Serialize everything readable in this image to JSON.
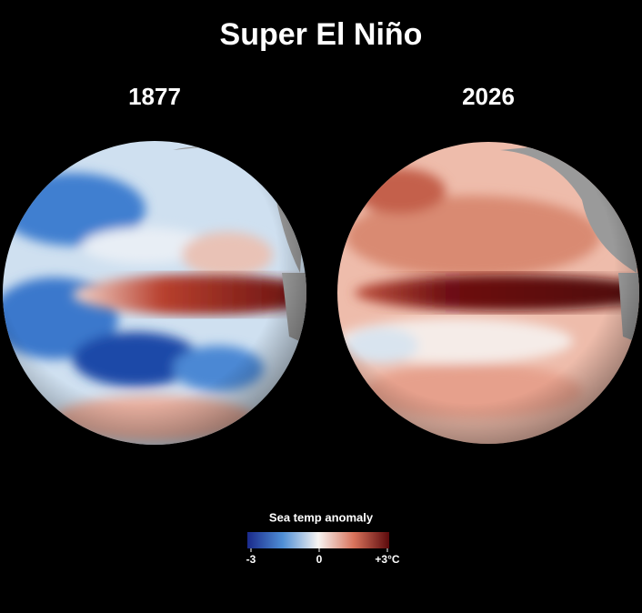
{
  "title": "Super El Niño",
  "maps": [
    {
      "label": "1877"
    },
    {
      "label": "2026"
    }
  ],
  "legend": {
    "title": "Sea temp anomaly",
    "range": [
      -3,
      3
    ],
    "ticks": [
      {
        "value": -3,
        "label": "-3"
      },
      {
        "value": 0,
        "label": "0"
      },
      {
        "value": 3,
        "label": "+3°C"
      }
    ]
  }
}
